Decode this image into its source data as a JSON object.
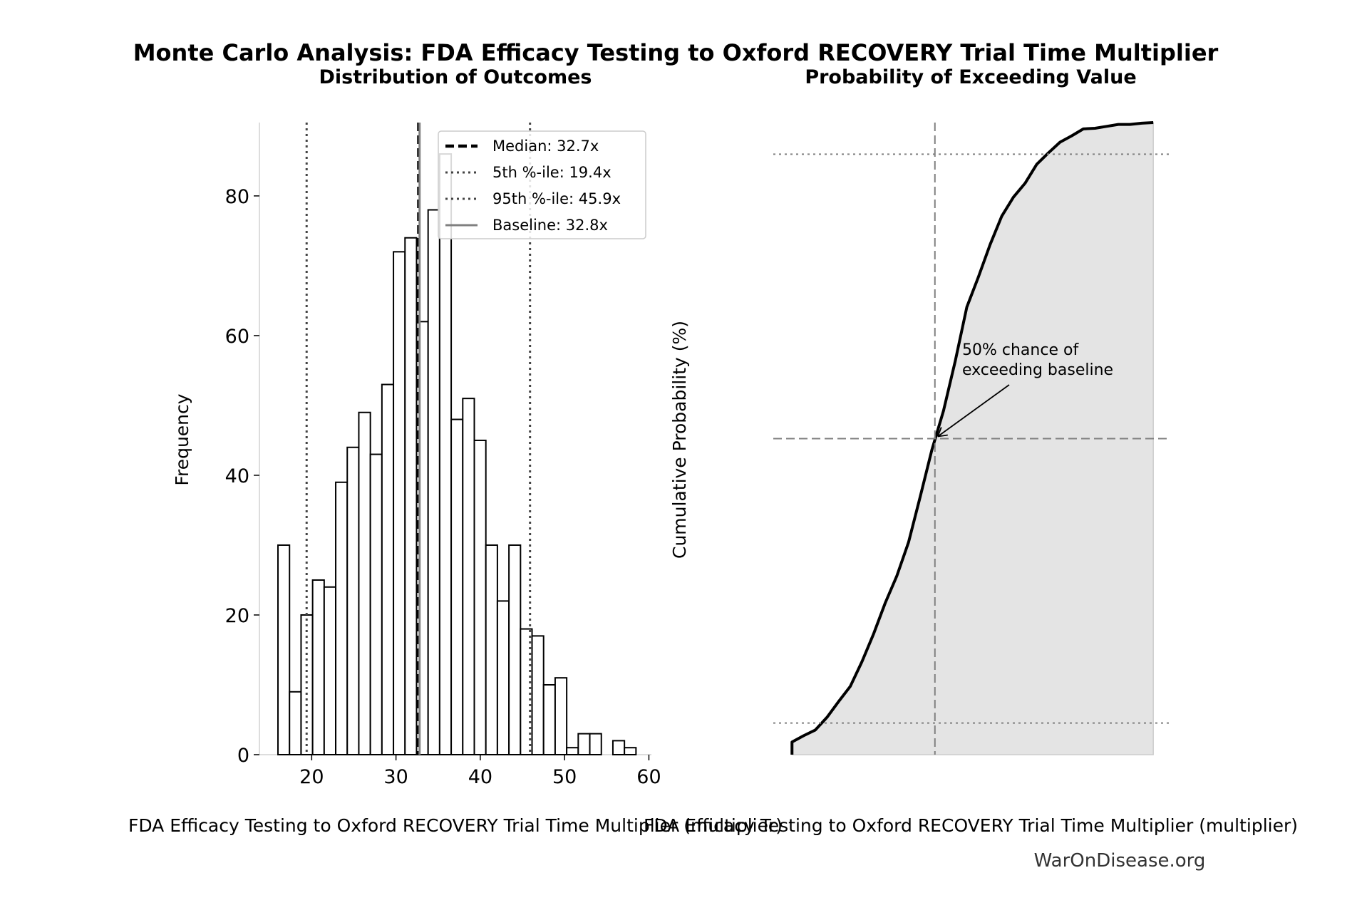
{
  "figure": {
    "title": "Monte Carlo Analysis: FDA Efficacy Testing to Oxford RECOVERY Trial Time Multiplier",
    "watermark": "WarOnDisease.org"
  },
  "chart_data": [
    {
      "type": "bar",
      "subtype": "histogram",
      "title": "Distribution of Outcomes",
      "xlabel": "FDA Efficacy Testing to Oxford RECOVERY Trial Time Multiplier (multiplier)",
      "ylabel": "Frequency",
      "xlim": [
        13.8,
        60.3
      ],
      "ylim": [
        0,
        90.5
      ],
      "xticks": [
        20,
        30,
        40,
        50,
        60
      ],
      "yticks": [
        0,
        20,
        40,
        60,
        80
      ],
      "bin_start": 16.0,
      "bin_width": 1.37,
      "values": [
        30,
        9,
        20,
        25,
        24,
        39,
        44,
        49,
        43,
        53,
        72,
        74,
        62,
        78,
        86,
        48,
        51,
        45,
        30,
        22,
        30,
        18,
        17,
        10,
        11,
        1,
        3,
        3,
        0,
        2,
        1
      ],
      "bar_fill": "#ffffff",
      "bar_edge": "#000000",
      "grid": false,
      "legend_position": "upper right",
      "reference_lines": [
        {
          "label": "Median: 32.7x",
          "x": 32.7,
          "style": "dashed",
          "color": "#000000"
        },
        {
          "label": "5th %-ile: 19.4x",
          "x": 19.4,
          "style": "dotted",
          "color": "#444444"
        },
        {
          "label": "95th %-ile: 45.9x",
          "x": 45.9,
          "style": "dotted",
          "color": "#444444"
        },
        {
          "label": "Baseline: 32.8x",
          "x": 32.8,
          "style": "solid",
          "color": "#808080"
        }
      ]
    },
    {
      "type": "area",
      "subtype": "cumulative distribution",
      "title": "Probability of Exceeding Value",
      "xlabel": "FDA Efficacy Testing to Oxford RECOVERY Trial Time Multiplier (multiplier)",
      "ylabel": "Cumulative Probability (%)",
      "xlim": [
        13.8,
        60.3
      ],
      "ylim": [
        0,
        100
      ],
      "xticks": [
        20,
        30,
        40,
        50,
        60
      ],
      "yticks": [
        0,
        20,
        40,
        60,
        80,
        100
      ],
      "x": [
        16.0,
        17.37,
        18.74,
        20.11,
        21.48,
        22.85,
        24.22,
        25.59,
        26.96,
        28.33,
        29.7,
        31.07,
        32.44,
        33.81,
        35.18,
        36.55,
        37.92,
        39.29,
        40.66,
        42.03,
        43.4,
        44.77,
        46.14,
        47.51,
        48.88,
        50.25,
        51.62,
        52.99,
        54.36,
        55.73,
        57.1,
        58.47
      ],
      "y": [
        2,
        3,
        3.9,
        5.9,
        8.4,
        10.8,
        14.7,
        19.1,
        24,
        28.3,
        33.6,
        40.8,
        48.2,
        54.4,
        62.2,
        70.8,
        75.6,
        80.7,
        85.2,
        88.2,
        90.4,
        93.4,
        95.2,
        96.9,
        97.9,
        99,
        99.1,
        99.4,
        99.7,
        99.7,
        99.9,
        100
      ],
      "fill_color": "#e4e4e4",
      "line_color": "#000000",
      "reference_lines": [
        {
          "axis": "x",
          "value": 32.8,
          "style": "dashed",
          "color": "#808080"
        },
        {
          "axis": "y",
          "value": 50,
          "style": "dashed",
          "color": "#808080"
        },
        {
          "axis": "y",
          "value": 95,
          "style": "dotted",
          "color": "#808080"
        },
        {
          "axis": "y",
          "value": 5,
          "style": "dotted",
          "color": "#808080"
        }
      ],
      "annotation": {
        "lines": [
          "50% chance of",
          "exceeding baseline"
        ],
        "point": [
          32.8,
          50
        ]
      }
    }
  ]
}
